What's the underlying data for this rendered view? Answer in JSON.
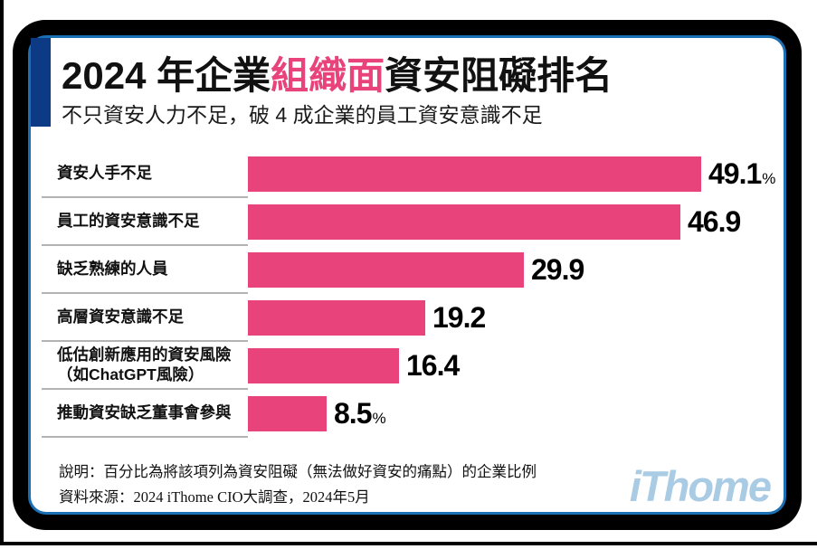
{
  "title": {
    "prefix": "2024 年企業",
    "highlight": "組織面",
    "suffix": "資安阻礙排名",
    "highlight_color": "#e8437a"
  },
  "subtitle": "不只資安人力不足，破 4 成企業的員工資安意識不足",
  "colors": {
    "bar": "#e8437a",
    "accent_block": "#0c3a85",
    "card_border_outer": "#000000",
    "card_border_inner": "#1b6fb5",
    "separator": "#b3b3b3",
    "logo": "#a9cbe4"
  },
  "chart_data": {
    "type": "bar",
    "orientation": "horizontal",
    "title": "2024 年企業組織面資安阻礙排名",
    "subtitle": "不只資安人力不足，破 4 成企業的員工資安意識不足",
    "unit": "%",
    "xlim": [
      0,
      52
    ],
    "grid": false,
    "legend": false,
    "categories": [
      "資安人手不足",
      "員工的資安意識不足",
      "缺乏熟練的人員",
      "高層資安意識不足",
      "低估創新應用的資安風險（如ChatGPT風險）",
      "推動資安缺乏董事會參與"
    ],
    "values": [
      49.1,
      46.9,
      29.9,
      19.2,
      16.4,
      8.5
    ],
    "rows": [
      {
        "label": "資安人手不足",
        "label2": "",
        "value": 49.1,
        "display": "49.1",
        "suffix": "%"
      },
      {
        "label": "員工的資安意識不足",
        "label2": "",
        "value": 46.9,
        "display": "46.9",
        "suffix": ""
      },
      {
        "label": "缺乏熟練的人員",
        "label2": "",
        "value": 29.9,
        "display": "29.9",
        "suffix": ""
      },
      {
        "label": "高層資安意識不足",
        "label2": "",
        "value": 19.2,
        "display": "19.2",
        "suffix": ""
      },
      {
        "label": "低估創新應用的資安風險",
        "label2": "（如ChatGPT風險）",
        "value": 16.4,
        "display": "16.4",
        "suffix": ""
      },
      {
        "label": "推動資安缺乏董事會參與",
        "label2": "",
        "value": 8.5,
        "display": "8.5",
        "suffix": "%"
      }
    ]
  },
  "footer": {
    "note": "說明：百分比為將該項列為資安阻礙（無法做好資安的痛點）的企業比例",
    "source": "資料來源：2024 iThome CIO大調查，2024年5月",
    "logo": "iThome"
  }
}
